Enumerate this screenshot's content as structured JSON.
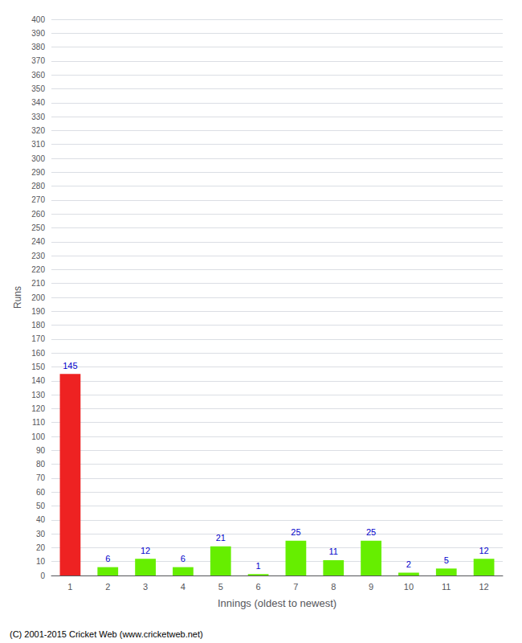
{
  "chart_data": {
    "type": "bar",
    "xlabel": "Innings (oldest to newest)",
    "ylabel": "Runs",
    "categories": [
      1,
      2,
      3,
      4,
      5,
      6,
      7,
      8,
      9,
      10,
      11,
      12
    ],
    "values": [
      145,
      6,
      12,
      6,
      21,
      1,
      25,
      11,
      25,
      2,
      5,
      12
    ],
    "colors": [
      "#ee2222",
      "#66ee00",
      "#66ee00",
      "#66ee00",
      "#66ee00",
      "#66ee00",
      "#66ee00",
      "#66ee00",
      "#66ee00",
      "#66ee00",
      "#66ee00",
      "#66ee00"
    ],
    "ylim": [
      0,
      400
    ],
    "yticks": [
      0,
      10,
      20,
      30,
      40,
      50,
      60,
      70,
      80,
      90,
      100,
      110,
      120,
      130,
      140,
      150,
      160,
      170,
      180,
      190,
      200,
      210,
      220,
      230,
      240,
      250,
      260,
      270,
      280,
      290,
      300,
      310,
      320,
      330,
      340,
      350,
      360,
      370,
      380,
      390,
      400
    ],
    "grid": true,
    "data_labels": true,
    "annotations": [
      "(C) 2001-2015 Cricket Web (www.cricketweb.net)"
    ]
  }
}
